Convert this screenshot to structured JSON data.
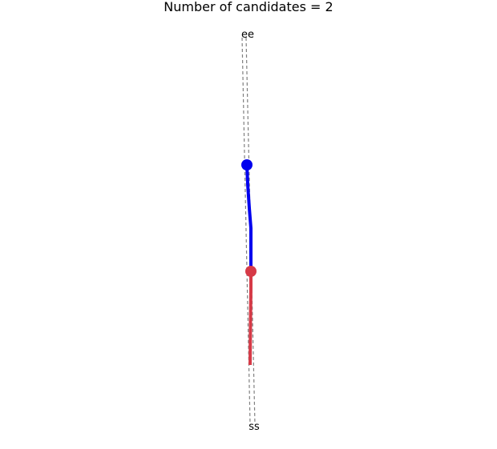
{
  "title": "Number of candidates = 2",
  "labels": {
    "end_pair": "ee",
    "start_pair": "ss"
  },
  "colors": {
    "background": "#ffffff",
    "guide": "#808080",
    "blue_path": "#0000ee",
    "red_path": "#d63a47"
  },
  "legend": "none"
}
